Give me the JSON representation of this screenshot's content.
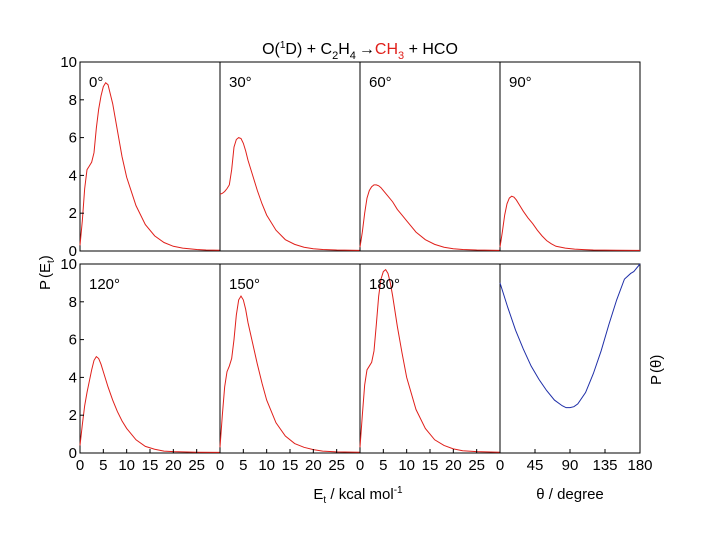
{
  "figure": {
    "title_prefix": "O(",
    "title_sup_1": "1",
    "title_mid": "D) + C",
    "title_sub_2": "2",
    "title_h": "H",
    "title_sub_4": "4",
    "title_arrow": "→",
    "title_highlight": "CH",
    "title_sub_3": "3",
    "title_suffix": " + HCO",
    "highlight_color": "#e0201b",
    "line_color_red": "#e0201b",
    "line_color_blue": "#1f2fa8",
    "left_ylabel_main": "P",
    "left_ylabel_arg": "E",
    "left_ylabel_sub": "t",
    "right_ylabel_main": "P",
    "right_ylabel_arg": "θ",
    "xlabel_energy_main": "E",
    "xlabel_energy_sub": "t",
    "xlabel_energy_rest": " / kcal mol",
    "xlabel_energy_sup": "-1",
    "xlabel_angle": "θ / degree"
  },
  "chart_data": [
    {
      "type": "line",
      "panel": "0°",
      "xlim": [
        0,
        30
      ],
      "ylim": [
        0,
        10
      ],
      "xticks": [
        "0",
        "5",
        "10",
        "15",
        "20",
        "25"
      ],
      "yticks": [
        "0",
        "2",
        "4",
        "6",
        "8",
        "10"
      ],
      "x": [
        0,
        0.5,
        1,
        1.5,
        2,
        2.5,
        3,
        3.5,
        4,
        4.5,
        5,
        5.5,
        6,
        7,
        8,
        9,
        10,
        12,
        14,
        16,
        18,
        20,
        22,
        25,
        27,
        30
      ],
      "y": [
        0.3,
        1.6,
        3.3,
        4.3,
        4.5,
        4.7,
        5.2,
        6.5,
        7.5,
        8.2,
        8.7,
        8.9,
        8.8,
        7.8,
        6.4,
        5.0,
        3.9,
        2.4,
        1.4,
        0.8,
        0.45,
        0.25,
        0.15,
        0.08,
        0.05,
        0.04
      ]
    },
    {
      "type": "line",
      "panel": "30°",
      "xlim": [
        0,
        30
      ],
      "ylim": [
        0,
        10
      ],
      "xticks": [
        "0",
        "5",
        "10",
        "15",
        "20",
        "25"
      ],
      "x": [
        0,
        0.5,
        1,
        1.5,
        2,
        2.5,
        3,
        3.5,
        4,
        4.5,
        5,
        5.5,
        6,
        7,
        8,
        9,
        10,
        12,
        14,
        16,
        18,
        20,
        22,
        25,
        30
      ],
      "y": [
        3.0,
        3.05,
        3.15,
        3.3,
        3.5,
        4.3,
        5.5,
        5.9,
        6.0,
        5.95,
        5.7,
        5.3,
        4.8,
        4.0,
        3.2,
        2.5,
        1.9,
        1.1,
        0.6,
        0.35,
        0.2,
        0.12,
        0.08,
        0.05,
        0.03
      ]
    },
    {
      "type": "line",
      "panel": "60°",
      "xlim": [
        0,
        30
      ],
      "ylim": [
        0,
        10
      ],
      "xticks": [
        "0",
        "5",
        "10",
        "15",
        "20",
        "25"
      ],
      "x": [
        0,
        0.5,
        1,
        1.5,
        2,
        2.5,
        3,
        3.5,
        4,
        4.5,
        5,
        6,
        7,
        8,
        9,
        10,
        11,
        12,
        14,
        16,
        18,
        20,
        22,
        25,
        30
      ],
      "y": [
        0.2,
        1.0,
        2.0,
        2.8,
        3.2,
        3.4,
        3.5,
        3.5,
        3.45,
        3.35,
        3.2,
        2.9,
        2.6,
        2.2,
        1.9,
        1.6,
        1.3,
        1.0,
        0.6,
        0.35,
        0.2,
        0.12,
        0.08,
        0.05,
        0.03
      ]
    },
    {
      "type": "line",
      "panel": "90°",
      "xlim": [
        0,
        30
      ],
      "ylim": [
        0,
        10
      ],
      "xticks": [
        "0",
        "5",
        "10",
        "15",
        "20",
        "25"
      ],
      "x": [
        0,
        0.5,
        1,
        1.5,
        2,
        2.5,
        3,
        3.5,
        4,
        5,
        6,
        7,
        8,
        9,
        10,
        11,
        12,
        14,
        16,
        18,
        20,
        25,
        30
      ],
      "y": [
        0.2,
        1.0,
        1.9,
        2.5,
        2.8,
        2.9,
        2.85,
        2.7,
        2.5,
        2.1,
        1.75,
        1.45,
        1.1,
        0.8,
        0.55,
        0.38,
        0.25,
        0.15,
        0.1,
        0.07,
        0.05,
        0.04,
        0.03
      ]
    },
    {
      "type": "line",
      "panel": "120°",
      "xlim": [
        0,
        30
      ],
      "ylim": [
        0,
        10
      ],
      "xticks": [
        "0",
        "5",
        "10",
        "15",
        "20",
        "25"
      ],
      "yticks": [
        "0",
        "2",
        "4",
        "6",
        "8",
        "10"
      ],
      "x": [
        0,
        0.5,
        1,
        1.5,
        2,
        2.5,
        3,
        3.5,
        4,
        4.5,
        5,
        6,
        7,
        8,
        9,
        10,
        12,
        14,
        16,
        18,
        20,
        25,
        30
      ],
      "y": [
        0.4,
        1.5,
        2.5,
        3.2,
        3.8,
        4.4,
        4.9,
        5.1,
        5.0,
        4.7,
        4.3,
        3.5,
        2.8,
        2.2,
        1.7,
        1.3,
        0.7,
        0.35,
        0.2,
        0.1,
        0.07,
        0.04,
        0.03
      ]
    },
    {
      "type": "line",
      "panel": "150°",
      "xlim": [
        0,
        30
      ],
      "ylim": [
        0,
        10
      ],
      "xticks": [
        "0",
        "5",
        "10",
        "15",
        "20",
        "25"
      ],
      "x": [
        0,
        0.5,
        1,
        1.5,
        2,
        2.5,
        3,
        3.5,
        4,
        4.5,
        5,
        5.5,
        6,
        7,
        8,
        9,
        10,
        12,
        14,
        16,
        18,
        20,
        22,
        25,
        30
      ],
      "y": [
        0.3,
        2.0,
        3.5,
        4.3,
        4.6,
        5.0,
        6.0,
        7.3,
        8.1,
        8.3,
        8.1,
        7.6,
        6.9,
        5.8,
        4.7,
        3.7,
        2.8,
        1.6,
        0.9,
        0.5,
        0.3,
        0.18,
        0.1,
        0.06,
        0.04
      ]
    },
    {
      "type": "line",
      "panel": "180°",
      "xlim": [
        0,
        30
      ],
      "ylim": [
        0,
        10
      ],
      "xticks": [
        "0",
        "5",
        "10",
        "15",
        "20",
        "25"
      ],
      "x": [
        0,
        0.5,
        1,
        1.5,
        2,
        2.5,
        3,
        3.5,
        4,
        4.5,
        5,
        5.5,
        6,
        6.5,
        7,
        8,
        9,
        10,
        12,
        14,
        16,
        18,
        20,
        22,
        25,
        30
      ],
      "y": [
        0.3,
        2.0,
        3.6,
        4.4,
        4.6,
        4.8,
        5.4,
        6.8,
        8.3,
        9.2,
        9.6,
        9.7,
        9.5,
        9.0,
        8.3,
        6.7,
        5.3,
        4.0,
        2.3,
        1.3,
        0.7,
        0.4,
        0.22,
        0.12,
        0.07,
        0.04
      ]
    },
    {
      "type": "line",
      "panel": "",
      "xlim": [
        0,
        180
      ],
      "ylim": [
        0,
        10
      ],
      "xticks": [
        "0",
        "45",
        "90",
        "135",
        "180"
      ],
      "x": [
        0,
        10,
        20,
        30,
        40,
        50,
        60,
        70,
        80,
        85,
        90,
        95,
        100,
        110,
        120,
        130,
        140,
        150,
        160,
        168,
        172,
        180
      ],
      "y": [
        9.0,
        7.7,
        6.5,
        5.5,
        4.6,
        3.9,
        3.3,
        2.8,
        2.5,
        2.4,
        2.4,
        2.45,
        2.6,
        3.2,
        4.2,
        5.4,
        6.8,
        8.1,
        9.2,
        9.5,
        9.6,
        10.0
      ]
    }
  ]
}
